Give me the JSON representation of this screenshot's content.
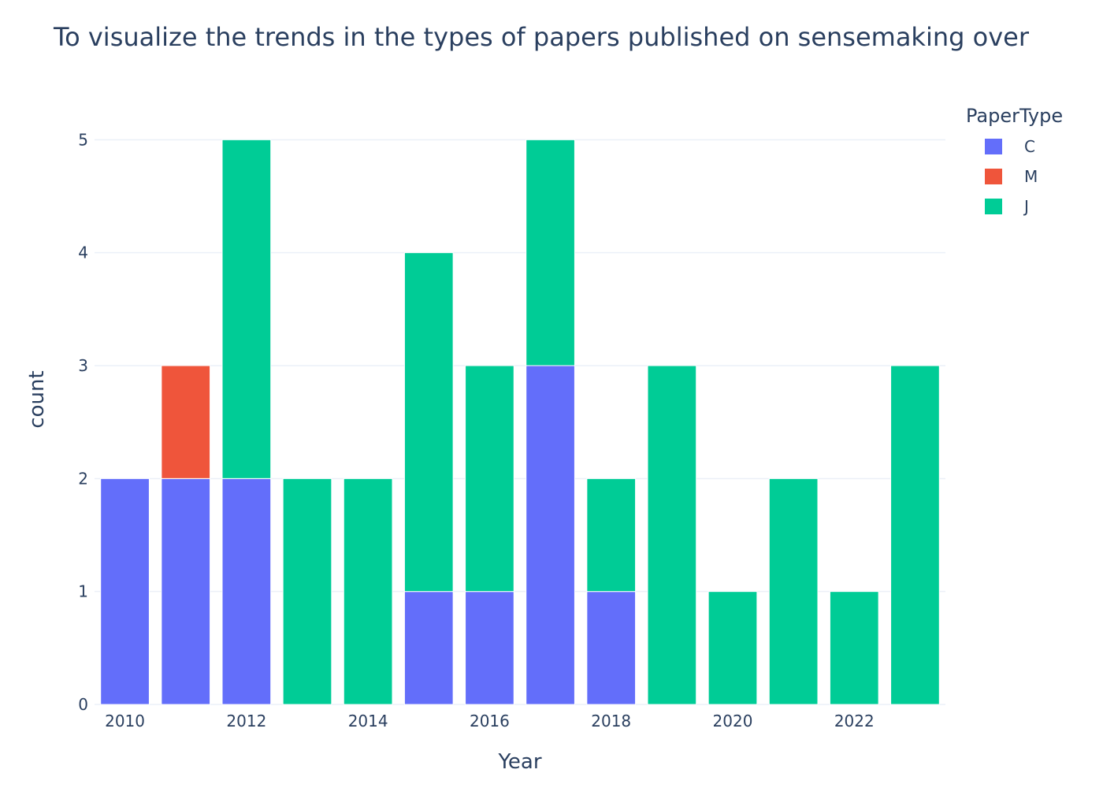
{
  "chart_data": {
    "type": "bar",
    "stacked": true,
    "title": "To visualize the trends in the types of papers published on sensemaking over",
    "xlabel": "Year",
    "ylabel": "count",
    "x": [
      2010,
      2011,
      2012,
      2013,
      2014,
      2015,
      2016,
      2017,
      2018,
      2019,
      2020,
      2021,
      2022,
      2023
    ],
    "x_ticks": [
      "2010",
      "2012",
      "2014",
      "2016",
      "2018",
      "2020",
      "2022"
    ],
    "y_ticks": [
      "0",
      "1",
      "2",
      "3",
      "4",
      "5"
    ],
    "ylim": [
      0,
      5.4
    ],
    "grid": true,
    "legend": {
      "title": "PaperType",
      "placement": "top-right"
    },
    "series": [
      {
        "name": "C",
        "color": "#636efa",
        "values": [
          2,
          2,
          2,
          0,
          0,
          1,
          1,
          3,
          1,
          0,
          0,
          0,
          0,
          0
        ]
      },
      {
        "name": "M",
        "color": "#ef553b",
        "values": [
          0,
          1,
          0,
          0,
          0,
          0,
          0,
          0,
          0,
          0,
          0,
          0,
          0,
          0
        ]
      },
      {
        "name": "J",
        "color": "#00cc96",
        "values": [
          0,
          0,
          3,
          2,
          2,
          3,
          2,
          2,
          1,
          3,
          1,
          2,
          1,
          3
        ]
      }
    ]
  }
}
